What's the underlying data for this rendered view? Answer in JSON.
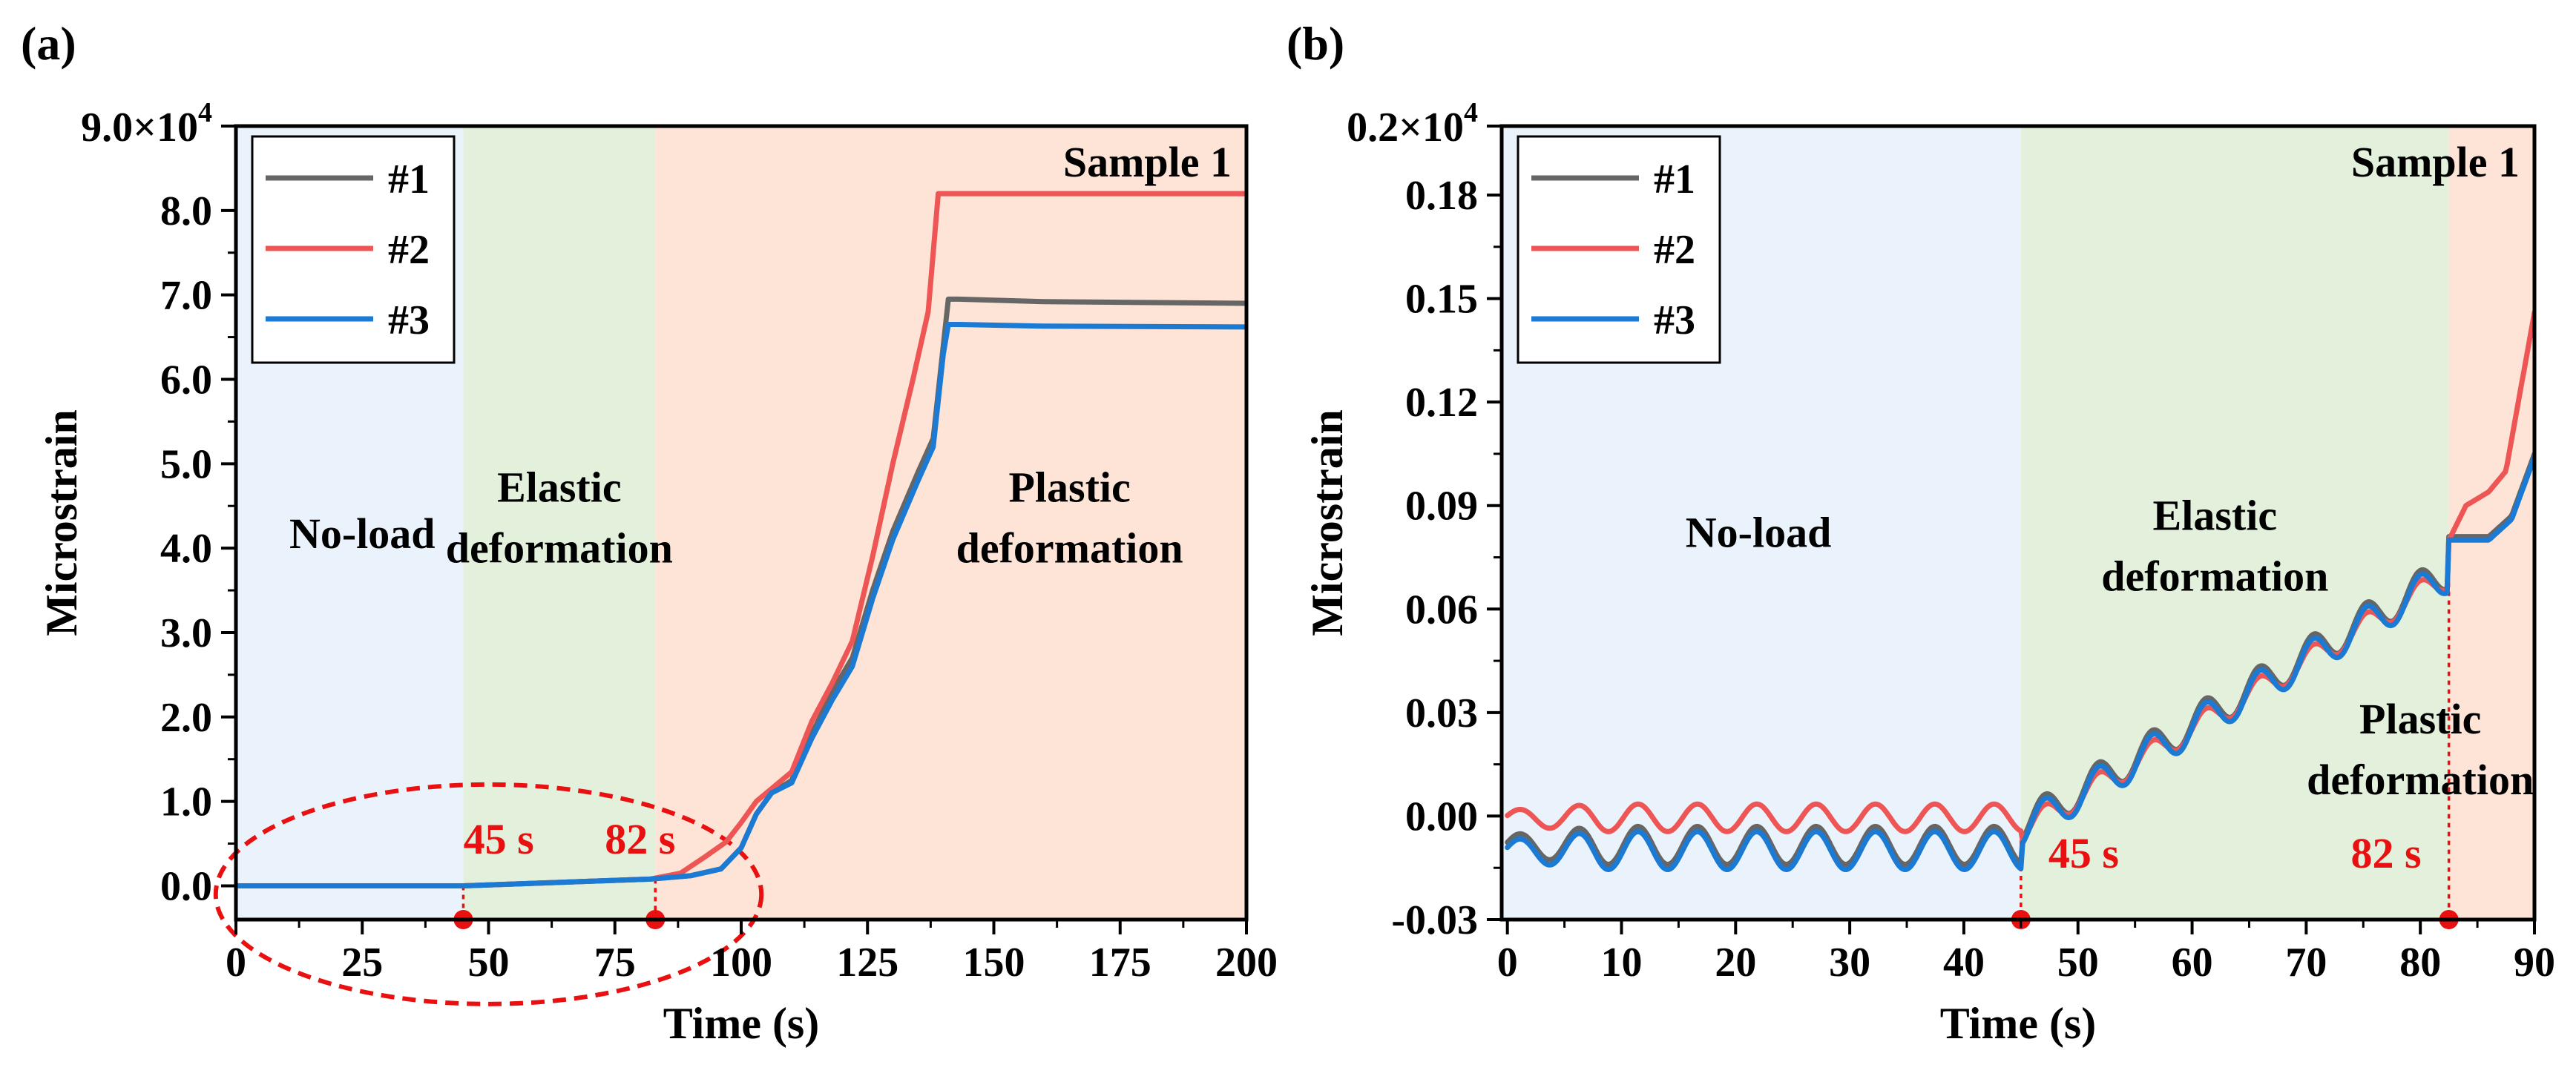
{
  "figure": {
    "colors": {
      "noload": "#eaf3fb",
      "elastic": "#e3f1dc",
      "plastic": "#fde4d6",
      "series1": "#666666",
      "series2": "#ee5555",
      "series3": "#1a7ad4",
      "annotation": "#e81010"
    }
  },
  "chart_data": [
    {
      "type": "line",
      "panel_label": "(a)",
      "title": "Sample 1",
      "xlabel": "Time (s)",
      "ylabel": "Microstrain",
      "exponent_label": "9.0×10",
      "exponent_power": "4",
      "xlim": [
        0,
        200
      ],
      "ylim": [
        -0.4,
        9.0
      ],
      "xticks": [
        0,
        25,
        50,
        75,
        100,
        125,
        150,
        175,
        200
      ],
      "xtick_labels": [
        "0",
        "25",
        "50",
        "75",
        "100",
        "125",
        "150",
        "175",
        "200"
      ],
      "yticks": [
        0,
        1,
        2,
        3,
        4,
        5,
        6,
        7,
        8
      ],
      "ytick_labels": [
        "0.0",
        "1.0",
        "2.0",
        "3.0",
        "4.0",
        "5.0",
        "6.0",
        "7.0",
        "8.0"
      ],
      "regions": [
        {
          "start": 0,
          "end": 45,
          "color_key": "noload",
          "label_lines": [
            "No-load"
          ],
          "label_x": 25,
          "label_y": 4.0
        },
        {
          "start": 45,
          "end": 83,
          "color_key": "elastic",
          "label_lines": [
            "Elastic",
            "deformation"
          ],
          "label_x": 64,
          "label_y": 4.55
        },
        {
          "start": 83,
          "end": 200,
          "color_key": "plastic",
          "label_lines": [
            "Plastic",
            "deformation"
          ],
          "label_x": 165,
          "label_y": 4.55
        }
      ],
      "markers": [
        {
          "x": 45,
          "y": 0.0,
          "label": "45 s",
          "label_x": 52,
          "label_y": 0.38
        },
        {
          "x": 83,
          "y": 0.08,
          "label": "82 s",
          "label_x": 80,
          "label_y": 0.38
        }
      ],
      "ellipse": {
        "cx": 50,
        "cy": -0.1,
        "rx": 54,
        "ry": 1.3
      },
      "legend": [
        "#1",
        "#2",
        "#3"
      ],
      "series": [
        {
          "name": "#1",
          "color_key": "series1",
          "x": [
            0,
            45,
            82,
            90,
            96,
            100,
            103,
            106,
            110,
            114,
            118,
            122,
            126,
            130,
            135,
            138,
            140,
            141,
            143,
            160,
            200
          ],
          "y": [
            0,
            0.0,
            0.08,
            0.12,
            0.2,
            0.45,
            0.85,
            1.1,
            1.25,
            1.8,
            2.3,
            2.7,
            3.5,
            4.2,
            4.9,
            5.3,
            6.4,
            6.95,
            6.95,
            6.92,
            6.9
          ]
        },
        {
          "name": "#2",
          "color_key": "series2",
          "x": [
            0,
            45,
            82,
            88,
            93,
            97,
            100,
            103,
            106,
            110,
            114,
            118,
            122,
            126,
            130,
            134,
            137,
            139,
            141,
            160,
            200
          ],
          "y": [
            0,
            0.0,
            0.08,
            0.15,
            0.35,
            0.52,
            0.75,
            1.0,
            1.15,
            1.35,
            1.95,
            2.4,
            2.9,
            3.9,
            5.0,
            6.0,
            6.8,
            8.2,
            8.2,
            8.2,
            8.2
          ]
        },
        {
          "name": "#3",
          "color_key": "series3",
          "x": [
            0,
            45,
            82,
            90,
            96,
            100,
            103,
            106,
            110,
            114,
            118,
            122,
            126,
            130,
            135,
            138,
            140,
            141,
            143,
            160,
            200
          ],
          "y": [
            0,
            0.0,
            0.08,
            0.12,
            0.2,
            0.45,
            0.85,
            1.1,
            1.22,
            1.75,
            2.2,
            2.6,
            3.4,
            4.1,
            4.8,
            5.2,
            6.3,
            6.65,
            6.65,
            6.63,
            6.62
          ]
        }
      ]
    },
    {
      "type": "line",
      "panel_label": "(b)",
      "title": "Sample 1",
      "xlabel": "Time (s)",
      "ylabel": "Microstrain",
      "exponent_label": "0.2×10",
      "exponent_power": "4",
      "xlim": [
        -0.5,
        90
      ],
      "ylim": [
        -0.03,
        0.2
      ],
      "xticks": [
        0,
        10,
        20,
        30,
        40,
        50,
        60,
        70,
        80,
        90
      ],
      "xtick_labels": [
        "0",
        "10",
        "20",
        "30",
        "40",
        "50",
        "60",
        "70",
        "80",
        "90"
      ],
      "yticks": [
        -0.03,
        0.0,
        0.03,
        0.06,
        0.09,
        0.12,
        0.15,
        0.18
      ],
      "ytick_labels": [
        "-0.03",
        "0.00",
        "0.03",
        "0.06",
        "0.09",
        "0.12",
        "0.15",
        "0.18"
      ],
      "regions": [
        {
          "start": -0.5,
          "end": 45,
          "color_key": "noload",
          "label_lines": [
            "No-load"
          ],
          "label_x": 22,
          "label_y": 0.078
        },
        {
          "start": 45,
          "end": 82.5,
          "color_key": "elastic",
          "label_lines": [
            "Elastic",
            "deformation"
          ],
          "label_x": 62,
          "label_y": 0.083
        },
        {
          "start": 82.5,
          "end": 90,
          "color_key": "plastic",
          "label_lines": [
            "Plastic",
            "deformation"
          ],
          "label_x": 80,
          "label_y": 0.024
        }
      ],
      "markers": [
        {
          "x": 45,
          "y": -0.007,
          "label": "45 s",
          "label_x": 50.5,
          "label_y": -0.015
        },
        {
          "x": 82.5,
          "y": 0.078,
          "label": "82 s",
          "label_x": 77,
          "label_y": -0.015
        }
      ],
      "legend": [
        "#1",
        "#2",
        "#3"
      ],
      "series": [
        {
          "name": "#1",
          "color_key": "series1",
          "model": "osc",
          "base0": -0.01,
          "amp": 0.0055,
          "offset": 0.0015,
          "plastic": [
            [
              82.5,
              0.081
            ],
            [
              86,
              0.081
            ],
            [
              88,
              0.087
            ],
            [
              90,
              0.105
            ]
          ]
        },
        {
          "name": "#2",
          "color_key": "series2",
          "model": "osc",
          "base0": 0.0,
          "amp": 0.004,
          "offset": -0.0005,
          "plastic": [
            [
              82.5,
              0.08
            ],
            [
              84,
              0.09
            ],
            [
              86,
              0.094
            ],
            [
              87.5,
              0.1
            ],
            [
              90,
              0.146
            ]
          ]
        },
        {
          "name": "#3",
          "color_key": "series3",
          "model": "osc",
          "base0": -0.01,
          "amp": 0.0055,
          "offset": 0.0,
          "plastic": [
            [
              82.5,
              0.08
            ],
            [
              86,
              0.08
            ],
            [
              88,
              0.086
            ],
            [
              90,
              0.104
            ]
          ]
        }
      ]
    }
  ]
}
